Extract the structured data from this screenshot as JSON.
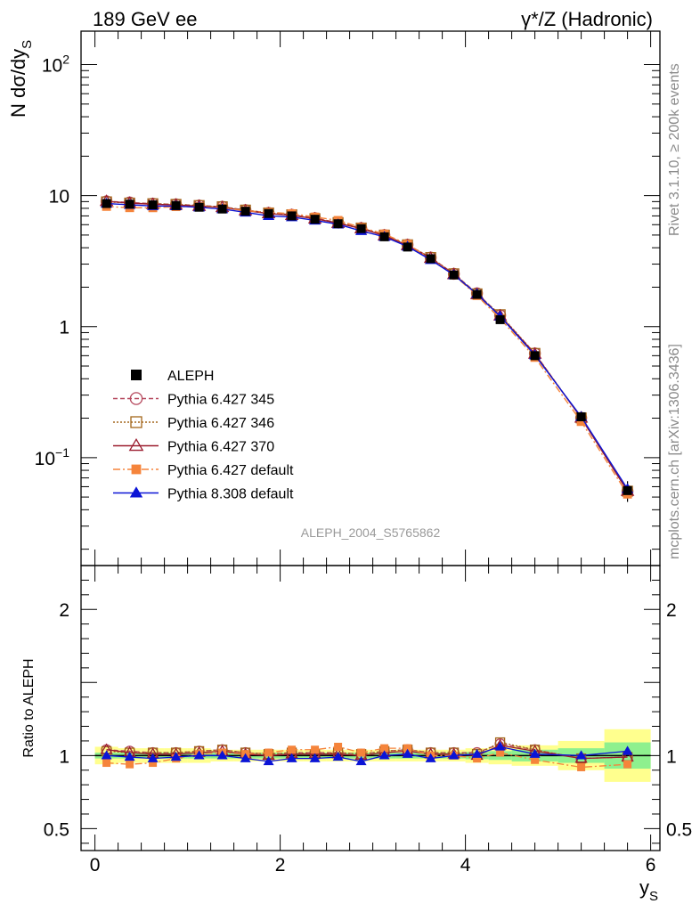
{
  "header": {
    "left_title": "189 GeV ee",
    "right_title": "γ*/Z (Hadronic)"
  },
  "side_text": {
    "rivet": "Rivet 3.1.10, ≥ 200k events",
    "mcplots": "mcplots.cern.ch [arXiv:1306.3436]"
  },
  "watermark": "ALEPH_2004_S5765862",
  "chart_data": {
    "type": "scatter",
    "title": "γ*/Z (Hadronic)",
    "ylabel": "N dσ/dy_S",
    "ylabel_main": "N dσ/dy",
    "ylabel_sub": "S",
    "xlabel": "y_S",
    "xlabel_main": "y",
    "xlabel_sub": "S",
    "xlim": [
      -0.15,
      6.1
    ],
    "ylim_main": [
      0.015,
      180
    ],
    "yscale_main": "log",
    "main_yticks": [
      {
        "value": 100,
        "base": "10",
        "exp": "2"
      },
      {
        "value": 10,
        "base": "10",
        "exp": ""
      },
      {
        "value": 1,
        "base": "1",
        "exp": ""
      },
      {
        "value": 0.1,
        "base": "10",
        "exp": "−1"
      }
    ],
    "ratio_ylabel": "Ratio to ALEPH",
    "ratio_ylim": [
      0.35,
      2.3
    ],
    "ratio_yticks": [
      {
        "value": 0.5,
        "label": "0.5"
      },
      {
        "value": 1,
        "label": "1"
      },
      {
        "value": 2,
        "label": "2"
      }
    ],
    "xticks": [
      {
        "value": 0,
        "label": "0"
      },
      {
        "value": 2,
        "label": "2"
      },
      {
        "value": 4,
        "label": "4"
      },
      {
        "value": 6,
        "label": "6"
      }
    ],
    "x": [
      0.125,
      0.375,
      0.625,
      0.875,
      1.125,
      1.375,
      1.625,
      1.875,
      2.125,
      2.375,
      2.625,
      2.875,
      3.125,
      3.375,
      3.625,
      3.875,
      4.125,
      4.375,
      4.75,
      5.25,
      5.75
    ],
    "x_edges": [
      0,
      0.25,
      0.5,
      0.75,
      1.0,
      1.25,
      1.5,
      1.75,
      2.0,
      2.25,
      2.5,
      2.75,
      3.0,
      3.25,
      3.5,
      3.75,
      4.0,
      4.25,
      4.5,
      5.0,
      5.5,
      6.0
    ],
    "data": {
      "name": "ALEPH",
      "values": [
        8.7,
        8.6,
        8.5,
        8.4,
        8.15,
        7.9,
        7.6,
        7.3,
        7.0,
        6.6,
        6.1,
        5.6,
        4.85,
        4.05,
        3.3,
        2.48,
        1.76,
        1.13,
        0.6,
        0.205,
        0.056
      ],
      "err_inner": [
        0.02,
        0.02,
        0.02,
        0.02,
        0.02,
        0.02,
        0.02,
        0.02,
        0.02,
        0.02,
        0.02,
        0.02,
        0.02,
        0.02,
        0.02,
        0.02,
        0.025,
        0.03,
        0.04,
        0.05,
        0.09
      ],
      "err_outer": [
        0.06,
        0.05,
        0.05,
        0.05,
        0.05,
        0.04,
        0.04,
        0.04,
        0.04,
        0.04,
        0.04,
        0.04,
        0.04,
        0.04,
        0.04,
        0.04,
        0.05,
        0.06,
        0.07,
        0.1,
        0.18
      ]
    },
    "series": [
      {
        "name": "Pythia 6.427 345",
        "color": "#b5475c",
        "marker": "circle-open",
        "dash": "5,3",
        "ratio": [
          1.04,
          1.03,
          1.02,
          1.02,
          1.03,
          1.04,
          1.02,
          1.01,
          1.02,
          1.02,
          1.02,
          1.01,
          1.03,
          1.04,
          1.02,
          1.02,
          1.02,
          1.08,
          1.04,
          0.98,
          0.99
        ]
      },
      {
        "name": "Pythia 6.427 346",
        "color": "#a3661b",
        "marker": "square-open",
        "dash": "2,2",
        "ratio": [
          1.03,
          1.02,
          1.02,
          1.02,
          1.03,
          1.04,
          1.02,
          1.01,
          1.02,
          1.01,
          1.02,
          1.01,
          1.03,
          1.04,
          1.02,
          1.02,
          1.01,
          1.09,
          1.04,
          0.98,
          0.99
        ]
      },
      {
        "name": "Pythia 6.427 370",
        "color": "#9b1c2e",
        "marker": "triangle-open",
        "dash": "",
        "ratio": [
          1.04,
          1.02,
          1.01,
          1.01,
          1.02,
          1.03,
          1.01,
          1.0,
          1.01,
          1.01,
          1.01,
          1.0,
          1.02,
          1.03,
          1.01,
          1.01,
          1.0,
          1.07,
          1.03,
          0.98,
          0.99
        ]
      },
      {
        "name": "Pythia 6.427 default",
        "color": "#f5843b",
        "marker": "square-filled",
        "dash": "8,3,2,3",
        "ratio": [
          0.95,
          0.94,
          0.95,
          0.98,
          1.01,
          1.02,
          1.01,
          1.02,
          1.04,
          1.04,
          1.06,
          1.02,
          1.05,
          1.05,
          1.0,
          1.0,
          0.98,
          1.02,
          0.97,
          0.92,
          0.94
        ]
      },
      {
        "name": "Pythia 8.308 default",
        "color": "#0b14d6",
        "marker": "triangle-filled",
        "dash": "",
        "ratio": [
          1.0,
          0.99,
          0.98,
          0.99,
          1.0,
          1.0,
          0.98,
          0.96,
          0.98,
          0.98,
          0.99,
          0.96,
          1.0,
          1.01,
          0.98,
          1.0,
          1.01,
          1.06,
          1.01,
          1.0,
          1.03
        ]
      }
    ]
  }
}
